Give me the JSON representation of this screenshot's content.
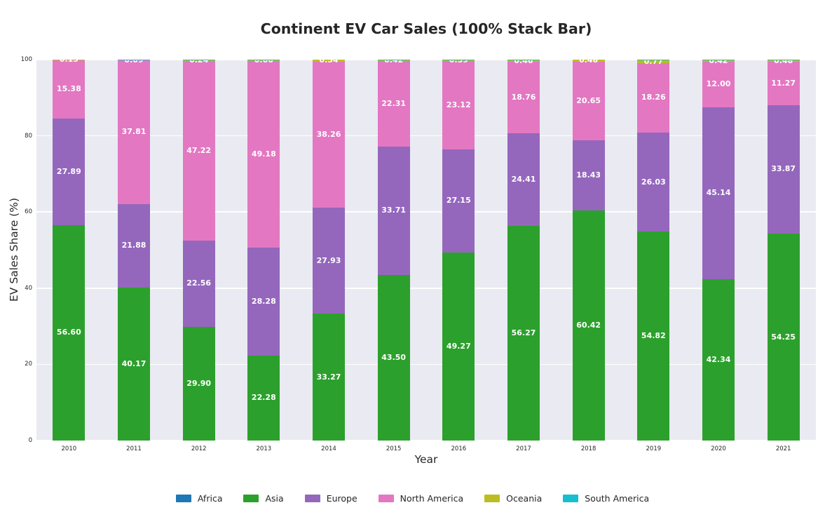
{
  "title": "Continent EV Car Sales (100% Stack Bar)",
  "axes": {
    "x_label": "Year",
    "y_label": "EV Sales Share (%)"
  },
  "colors": {
    "figure_bg": "#ffffff",
    "plot_bg": "#eaeaf2",
    "grid": "#ffffff",
    "text": "#262626",
    "bar_label": "#ffffff"
  },
  "chart_data": {
    "type": "bar",
    "stacked": true,
    "percent_stack": true,
    "title": "Continent EV Car Sales (100% Stack Bar)",
    "xlabel": "Year",
    "ylabel": "EV Sales Share (%)",
    "ylim": [
      0,
      100
    ],
    "y_ticks": [
      0,
      20,
      40,
      60,
      80,
      100
    ],
    "grid": true,
    "legend_position": "bottom",
    "categories": [
      "2010",
      "2011",
      "2012",
      "2013",
      "2014",
      "2015",
      "2016",
      "2017",
      "2018",
      "2019",
      "2020",
      "2021"
    ],
    "series": [
      {
        "name": "Africa",
        "color": "#1f77b4",
        "labels_shown": true,
        "values": [
          0.0,
          0.0,
          0.0,
          0.02,
          0.0,
          0.04,
          0.05,
          0.02,
          0.01,
          0.01,
          0.01,
          0.0
        ]
      },
      {
        "name": "Asia",
        "color": "#2ca02c",
        "labels_shown": true,
        "values": [
          56.6,
          40.17,
          29.9,
          22.28,
          33.27,
          43.5,
          49.27,
          56.27,
          60.42,
          54.82,
          42.34,
          54.25
        ]
      },
      {
        "name": "Europe",
        "color": "#9467bd",
        "labels_shown": true,
        "values": [
          27.89,
          21.88,
          22.56,
          28.28,
          27.93,
          33.71,
          27.15,
          24.41,
          18.43,
          26.03,
          45.14,
          33.87
        ]
      },
      {
        "name": "North America",
        "color": "#e377c2",
        "labels_shown": true,
        "values": [
          15.38,
          37.81,
          47.22,
          49.18,
          38.26,
          22.31,
          23.12,
          18.76,
          20.65,
          18.26,
          12.0,
          11.27
        ]
      },
      {
        "name": "Oceania",
        "color": "#bcbd22",
        "labels_shown": true,
        "values": [
          0.13,
          0.09,
          0.24,
          0.06,
          0.54,
          0.42,
          0.39,
          0.46,
          0.48,
          0.77,
          0.42,
          0.48
        ]
      },
      {
        "name": "South America",
        "color": "#17becf",
        "labels_shown": false,
        "values": [
          0.0,
          0.05,
          0.08,
          0.18,
          0.0,
          0.02,
          0.02,
          0.08,
          0.01,
          0.11,
          0.09,
          0.13
        ]
      }
    ]
  }
}
